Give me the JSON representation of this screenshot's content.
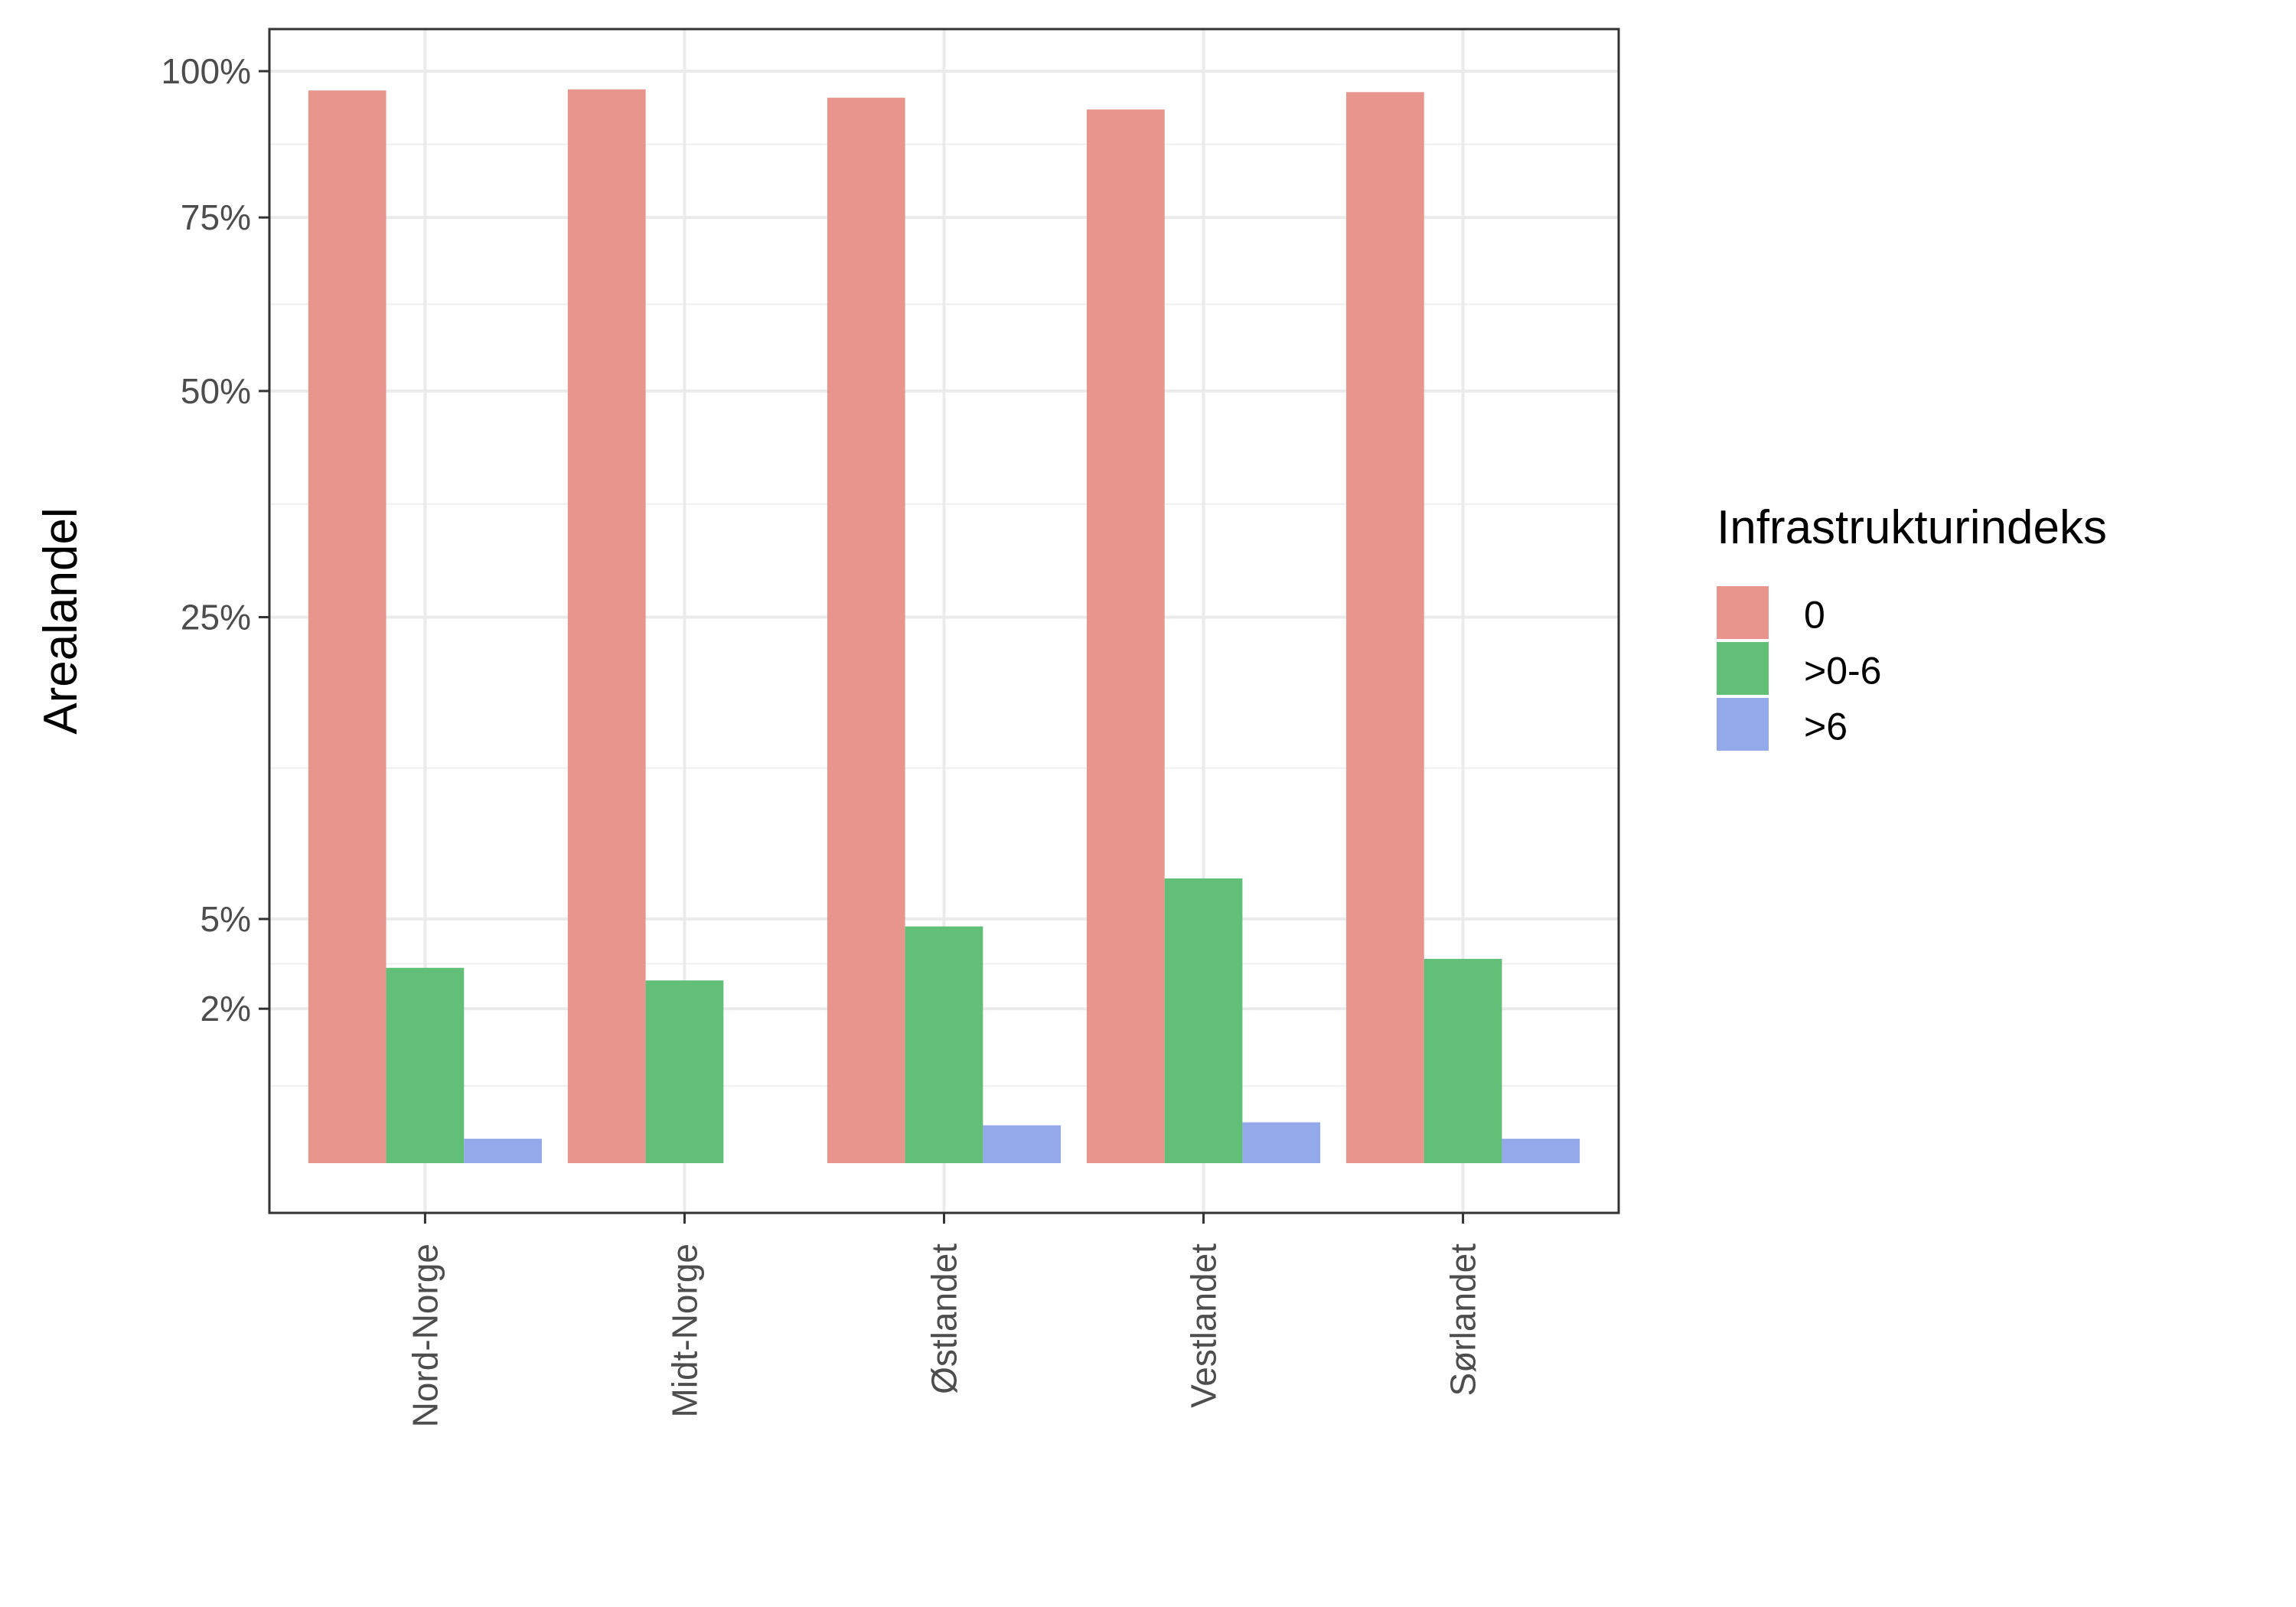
{
  "chart_data": {
    "type": "bar",
    "ylabel": "Arealandel",
    "y_scale": "sqrt",
    "ylim": [
      0,
      100
    ],
    "y_ticks": [
      {
        "value": 2,
        "label": "2%"
      },
      {
        "value": 5,
        "label": "5%"
      },
      {
        "value": 25,
        "label": "25%"
      },
      {
        "value": 50,
        "label": "50%"
      },
      {
        "value": 75,
        "label": "75%"
      },
      {
        "value": 100,
        "label": "100%"
      }
    ],
    "grid": true,
    "legend": {
      "title": "Infrastrukturindeks",
      "position": "right"
    },
    "categories": [
      "Nord-Norge",
      "Midt-Norge",
      "Østlandet",
      "Vestlandet",
      "Sørlandet"
    ],
    "series": [
      {
        "name": "0",
        "color": "#E8958E",
        "values": [
          96.5,
          96.7,
          95.2,
          93.1,
          96.2
        ]
      },
      {
        "name": ">0-6",
        "color": "#62BF78",
        "values": [
          3.2,
          2.8,
          4.7,
          6.8,
          3.5
        ]
      },
      {
        "name": ">6",
        "color": "#93A9EA",
        "values": [
          0.05,
          0,
          0.12,
          0.14,
          0.05
        ]
      }
    ]
  }
}
